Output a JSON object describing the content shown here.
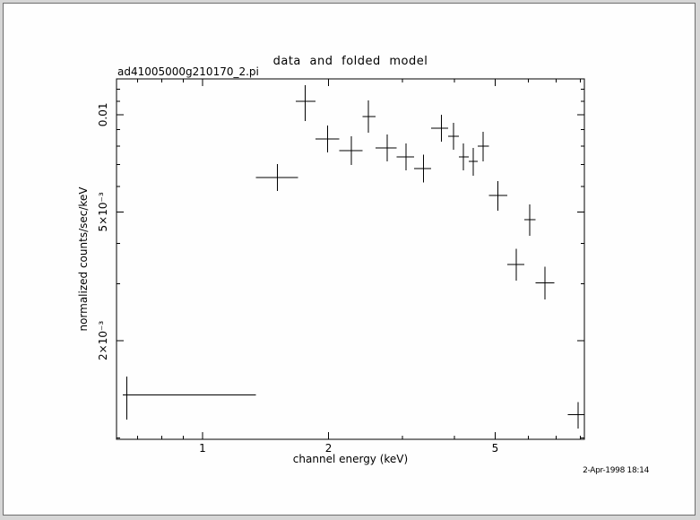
{
  "colors": {
    "plot_stroke": "#000000",
    "window_bg": "#fefefe",
    "outer_bg": "#d6d6d6",
    "frame_border": "#6e6e6e"
  },
  "chart_data": {
    "type": "scatter",
    "style": "x-ray-spectrum-error-crosses",
    "title": "data and folded model",
    "dataset_label": "ad41005000g210170_2.pi",
    "xlabel": "channel energy (keV)",
    "ylabel": "normalized counts/sec/keV",
    "timestamp": "2-Apr-1998 18:14",
    "x_scale": "log",
    "y_scale": "log",
    "grid": "off",
    "legend": "none",
    "xlim": [
      0.623,
      8.17
    ],
    "ylim": [
      0.00099,
      0.0129
    ],
    "x_major_ticks": [
      {
        "value": 1,
        "label": "1"
      },
      {
        "value": 2,
        "label": "2"
      },
      {
        "value": 5,
        "label": "5"
      }
    ],
    "x_minor_ticks": [
      0.7,
      0.8,
      0.9,
      3,
      4,
      6,
      7,
      8
    ],
    "y_major_ticks": [
      {
        "value": 0.01,
        "label": "0.01"
      },
      {
        "value": 0.005,
        "label": "5×10⁻³"
      },
      {
        "value": 0.002,
        "label": "2×10⁻³"
      }
    ],
    "y_minor_ticks": [
      0.001,
      0.003,
      0.004,
      0.006,
      0.007,
      0.008,
      0.009,
      0.011,
      0.012
    ],
    "points": [
      {
        "x": 0.66,
        "xlo": 0.645,
        "xhi": 1.34,
        "y": 0.00136,
        "ylo": 0.00114,
        "yhi": 0.00155
      },
      {
        "x": 1.51,
        "xlo": 1.34,
        "xhi": 1.69,
        "y": 0.00639,
        "ylo": 0.00581,
        "yhi": 0.00703
      },
      {
        "x": 1.76,
        "xlo": 1.67,
        "xhi": 1.86,
        "y": 0.011,
        "ylo": 0.00956,
        "yhi": 0.01235
      },
      {
        "x": 1.99,
        "xlo": 1.86,
        "xhi": 2.12,
        "y": 0.00841,
        "ylo": 0.00764,
        "yhi": 0.00926
      },
      {
        "x": 2.27,
        "xlo": 2.12,
        "xhi": 2.41,
        "y": 0.00774,
        "ylo": 0.00699,
        "yhi": 0.00858
      },
      {
        "x": 2.49,
        "xlo": 2.41,
        "xhi": 2.59,
        "y": 0.00987,
        "ylo": 0.0088,
        "yhi": 0.01108
      },
      {
        "x": 2.76,
        "xlo": 2.59,
        "xhi": 2.91,
        "y": 0.00789,
        "ylo": 0.00717,
        "yhi": 0.00869
      },
      {
        "x": 3.06,
        "xlo": 2.91,
        "xhi": 3.2,
        "y": 0.0074,
        "ylo": 0.00672,
        "yhi": 0.00815
      },
      {
        "x": 3.37,
        "xlo": 3.2,
        "xhi": 3.52,
        "y": 0.00681,
        "ylo": 0.00616,
        "yhi": 0.00753
      },
      {
        "x": 3.72,
        "xlo": 3.52,
        "xhi": 3.86,
        "y": 0.00908,
        "ylo": 0.00825,
        "yhi": 0.01
      },
      {
        "x": 3.98,
        "xlo": 3.86,
        "xhi": 4.1,
        "y": 0.00858,
        "ylo": 0.00779,
        "yhi": 0.00944
      },
      {
        "x": 4.2,
        "xlo": 4.1,
        "xhi": 4.32,
        "y": 0.0074,
        "ylo": 0.00672,
        "yhi": 0.00815
      },
      {
        "x": 4.43,
        "xlo": 4.32,
        "xhi": 4.54,
        "y": 0.00717,
        "ylo": 0.00647,
        "yhi": 0.00789
      },
      {
        "x": 4.68,
        "xlo": 4.54,
        "xhi": 4.83,
        "y": 0.00799,
        "ylo": 0.00717,
        "yhi": 0.00885
      },
      {
        "x": 5.08,
        "xlo": 4.83,
        "xhi": 5.35,
        "y": 0.00562,
        "ylo": 0.00504,
        "yhi": 0.00623
      },
      {
        "x": 5.62,
        "xlo": 5.35,
        "xhi": 5.87,
        "y": 0.00344,
        "ylo": 0.00307,
        "yhi": 0.00385
      },
      {
        "x": 6.05,
        "xlo": 5.87,
        "xhi": 6.24,
        "y": 0.00473,
        "ylo": 0.00422,
        "yhi": 0.00528
      },
      {
        "x": 6.58,
        "xlo": 6.24,
        "xhi": 6.92,
        "y": 0.00302,
        "ylo": 0.00268,
        "yhi": 0.00339
      },
      {
        "x": 7.89,
        "xlo": 7.45,
        "xhi": 8.17,
        "y": 0.00118,
        "ylo": 0.00107,
        "yhi": 0.00129
      }
    ]
  }
}
